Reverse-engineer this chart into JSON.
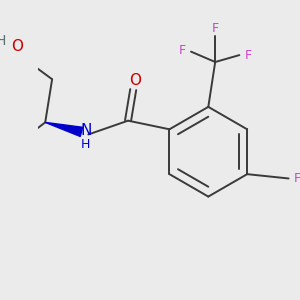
{
  "bg": "#ebebeb",
  "fig_size": [
    3.0,
    3.0
  ],
  "dpi": 100,
  "bond_color": "#3a3a3a",
  "bond_lw": 1.4,
  "atom_colors": {
    "O": "#cc0000",
    "H": "#5a7070",
    "N": "#0000cc",
    "F": "#cc44cc",
    "C": "#3a3a3a"
  }
}
